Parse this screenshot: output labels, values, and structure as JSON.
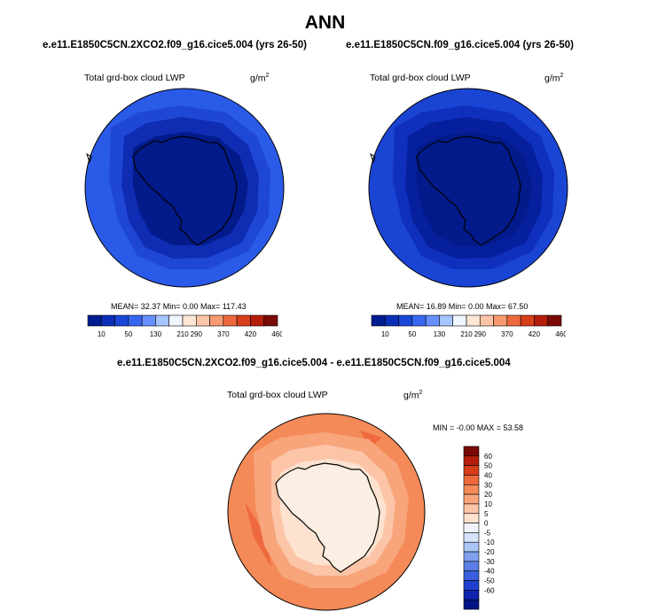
{
  "title": "ANN",
  "panels": [
    {
      "case": "e.e11.E1850C5CN.2XCO2.f09_g16.cice5.004 (yrs 26-50)",
      "variable": "Total grd-box cloud LWP",
      "units": "g/m",
      "units_exp": "2",
      "stats": "MEAN=  32.37  Min=   0.00  Max= 117.43",
      "colors": [
        "#011c8f",
        "#0a2fb8",
        "#1a47d8",
        "#3868f0",
        "#6690ff",
        "#a6c4ff",
        "#f0f6ff",
        "#fce6d4",
        "#fcc5a8",
        "#f89a70",
        "#ee6a3e",
        "#d93e1a",
        "#b51d0c",
        "#7a0a05"
      ],
      "labels": [
        "10",
        "50",
        "130",
        "210",
        "290",
        "370",
        "420",
        "460"
      ],
      "label_after": [
        0,
        2,
        4,
        6,
        7,
        9,
        11,
        13
      ]
    },
    {
      "case": "e.e11.E1850C5CN.f09_g16.cice5.004 (yrs 26-50)",
      "variable": "Total grd-box cloud LWP",
      "units": "g/m",
      "units_exp": "2",
      "stats": "MEAN=  16.89  Min=   0.00  Max=  67.50",
      "colors": [
        "#011c8f",
        "#0a2fb8",
        "#1a47d8",
        "#3868f0",
        "#6690ff",
        "#a6c4ff",
        "#f0f6ff",
        "#fce6d4",
        "#fcc5a8",
        "#f89a70",
        "#ee6a3e",
        "#d93e1a",
        "#b51d0c",
        "#7a0a05"
      ],
      "labels": [
        "10",
        "50",
        "130",
        "210",
        "290",
        "370",
        "420",
        "460"
      ],
      "label_after": [
        0,
        2,
        4,
        6,
        7,
        9,
        11,
        13
      ]
    }
  ],
  "diff": {
    "case": "e.e11.E1850C5CN.2XCO2.f09_g16.cice5.004 - e.e11.E1850C5CN.f09_g16.cice5.004",
    "variable": "Total grd-box cloud LWP",
    "units": "g/m",
    "units_exp": "2",
    "stats": "MIN =  -0.00 MAX =  53.58",
    "colors": [
      "#7a0a05",
      "#b51d0c",
      "#d93e1a",
      "#ee6a3e",
      "#f48a58",
      "#f8a57c",
      "#fcc5a8",
      "#fde3cf",
      "#f2f4fb",
      "#d6e4fb",
      "#a9c4f5",
      "#7fa0ee",
      "#5a7fe6",
      "#3a5fde",
      "#1f3fcf",
      "#0e24b0",
      "#021483"
    ],
    "labels": [
      "60",
      "50",
      "40",
      "30",
      "20",
      "10",
      "5",
      "0",
      "-5",
      "-10",
      "-20",
      "-30",
      "-40",
      "-50",
      "-60"
    ]
  }
}
